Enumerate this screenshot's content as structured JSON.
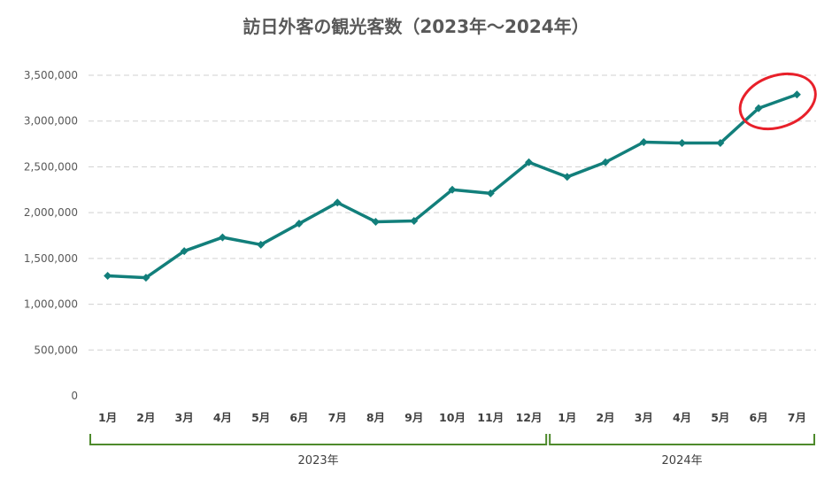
{
  "chart_data": {
    "type": "line",
    "title": "訪日外客の観光客数（2023年～2024年）",
    "categories": [
      "1月",
      "2月",
      "3月",
      "4月",
      "5月",
      "6月",
      "7月",
      "8月",
      "9月",
      "10月",
      "11月",
      "12月",
      "1月",
      "2月",
      "3月",
      "4月",
      "5月",
      "6月",
      "7月"
    ],
    "series": [
      {
        "values": [
          1310000,
          1290000,
          1580000,
          1730000,
          1650000,
          1880000,
          2110000,
          1900000,
          1910000,
          2250000,
          2210000,
          2550000,
          2390000,
          2550000,
          2770000,
          2760000,
          2760000,
          3140000,
          3290000
        ]
      }
    ],
    "y_ticks": [
      "0",
      "500,000",
      "1,000,000",
      "1,500,000",
      "2,000,000",
      "2,500,000",
      "3,000,000",
      "3,500,000"
    ],
    "ylim": [
      0,
      3500000
    ],
    "grid": true,
    "groups": [
      {
        "label": "2023年",
        "start": 0,
        "end": 11
      },
      {
        "label": "2024年",
        "start": 12,
        "end": 18
      }
    ],
    "highlight": {
      "start": 17,
      "end": 18
    },
    "colors": {
      "line": "#127f7b",
      "grid": "#d0d0d0",
      "bracket": "#4e8a2c",
      "highlight": "#e8202a"
    }
  }
}
